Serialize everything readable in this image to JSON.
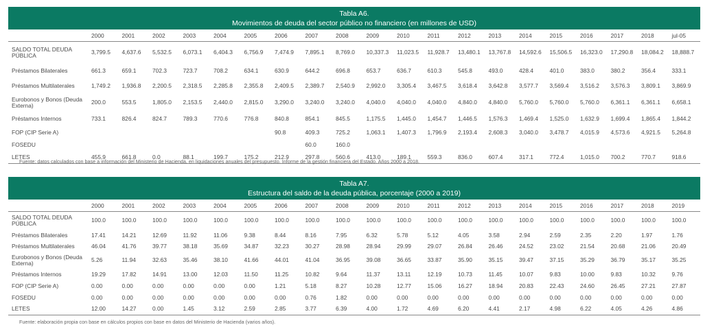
{
  "tables": [
    {
      "title": "Tabla A6.",
      "subtitle": "Movimientos de deuda del sector público no financiero (en millones de USD)",
      "columns": [
        "2000",
        "2001",
        "2002",
        "2003",
        "2004",
        "2005",
        "2006",
        "2007",
        "2008",
        "2009",
        "2010",
        "2011",
        "2012",
        "2013",
        "2014",
        "2015",
        "2016",
        "2017",
        "2018",
        "jul-05"
      ],
      "rows": [
        {
          "label": "SALDO TOTAL DEUDA PÚBLICA",
          "values": [
            "3,799.5",
            "4,637.6",
            "5,532.5",
            "6,073.1",
            "6,404.3",
            "6,756.9",
            "7,474.9",
            "7,895.1",
            "8,769.0",
            "10,337.3",
            "11,023.5",
            "11,928.7",
            "13,480.1",
            "13,767.8",
            "14,592.6",
            "15,506.5",
            "16,323.0",
            "17,290.8",
            "18,084.2",
            "18,888.7"
          ]
        },
        {
          "label": "Préstamos Bilaterales",
          "values": [
            "661.3",
            "659.1",
            "702.3",
            "723.7",
            "708.2",
            "634.1",
            "630.9",
            "644.2",
            "696.8",
            "653.7",
            "636.7",
            "610.3",
            "545.8",
            "493.0",
            "428.4",
            "401.0",
            "383.0",
            "380.2",
            "356.4",
            "333.1"
          ]
        },
        {
          "label": "Préstamos Multilaterales",
          "values": [
            "1,749.2",
            "1,936.8",
            "2,200.5",
            "2,318.5",
            "2,285.8",
            "2,355.8",
            "2,409.5",
            "2,389.7",
            "2,540.9",
            "2,992.0",
            "3,305.4",
            "3,467.5",
            "3,618.4",
            "3,642.8",
            "3,577.7",
            "3,569.4",
            "3,516.2",
            "3,576.3",
            "3,809.1",
            "3,869.9"
          ]
        },
        {
          "label": "Eurobonos y Bonos (Deuda Externa)",
          "values": [
            "200.0",
            "553.5",
            "1,805.0",
            "2,153.5",
            "2,440.0",
            "2,815.0",
            "3,290.0",
            "3,240.0",
            "3,240.0",
            "4,040.0",
            "4,040.0",
            "4,040.0",
            "4,840.0",
            "4,840.0",
            "5,760.0",
            "5,760.0",
            "5,760.0",
            "6,361.1",
            "6,361.1",
            "6,658.1"
          ]
        },
        {
          "label": "Préstamos Internos",
          "values": [
            "733.1",
            "826.4",
            "824.7",
            "789.3",
            "770.6",
            "776.8",
            "840.8",
            "854.1",
            "845.5",
            "1,175.5",
            "1,445.0",
            "1,454.7",
            "1,446.5",
            "1,576.3",
            "1,469.4",
            "1,525.0",
            "1,632.9",
            "1,699.4",
            "1,865.4",
            "1,844.2"
          ]
        },
        {
          "label": "FOP (CIP Serie A)",
          "values": [
            "",
            "",
            "",
            "",
            "",
            "",
            "90.8",
            "409.3",
            "725.2",
            "1,063.1",
            "1,407.3",
            "1,796.9",
            "2,193.4",
            "2,608.3",
            "3,040.0",
            "3,478.7",
            "4,015.9",
            "4,573.6",
            "4,921.5",
            "5,264.8"
          ]
        },
        {
          "label": "FOSEDU",
          "values": [
            "",
            "",
            "",
            "",
            "",
            "",
            "",
            "60.0",
            "160.0",
            "",
            "",
            "",
            "",
            "",
            "",
            "",
            "",
            "",
            "",
            ""
          ]
        },
        {
          "label": "LETES",
          "values": [
            "455.9",
            "661.8",
            "0.0",
            "88.1",
            "199.7",
            "175.2",
            "212.9",
            "297.8",
            "560.6",
            "413.0",
            "189.1",
            "559.3",
            "836.0",
            "607.4",
            "317.1",
            "772.4",
            "1,015.0",
            "700.2",
            "770.7",
            "918.6"
          ]
        }
      ],
      "source": "Fuente: datos calculados con base a información del Ministerio de Hacienda, en liquidaciones anuales del presupuesto. Informe de la gestión financiera del Estado. Años 2000 a 2018."
    },
    {
      "title": "Tabla A7.",
      "subtitle": "Estructura del saldo de la deuda pública, porcentaje (2000 a 2019)",
      "columns": [
        "2000",
        "2001",
        "2002",
        "2003",
        "2004",
        "2005",
        "2006",
        "2007",
        "2008",
        "2009",
        "2010",
        "2011",
        "2012",
        "2013",
        "2014",
        "2015",
        "2016",
        "2017",
        "2018",
        "2019"
      ],
      "rows": [
        {
          "label": "SALDO TOTAL DEUDA PÚBLICA",
          "values": [
            "100.0",
            "100.0",
            "100.0",
            "100.0",
            "100.0",
            "100.0",
            "100.0",
            "100.0",
            "100.0",
            "100.0",
            "100.0",
            "100.0",
            "100.0",
            "100.0",
            "100.0",
            "100.0",
            "100.0",
            "100.0",
            "100.0",
            "100.0"
          ]
        },
        {
          "label": "Préstamos Bilaterales",
          "values": [
            "17.41",
            "14.21",
            "12.69",
            "11.92",
            "11.06",
            "9.38",
            "8.44",
            "8.16",
            "7.95",
            "6.32",
            "5.78",
            "5.12",
            "4.05",
            "3.58",
            "2.94",
            "2.59",
            "2.35",
            "2.20",
            "1.97",
            "1.76"
          ]
        },
        {
          "label": "Préstamos Multilaterales",
          "values": [
            "46.04",
            "41.76",
            "39.77",
            "38.18",
            "35.69",
            "34.87",
            "32.23",
            "30.27",
            "28.98",
            "28.94",
            "29.99",
            "29.07",
            "26.84",
            "26.46",
            "24.52",
            "23.02",
            "21.54",
            "20.68",
            "21.06",
            "20.49"
          ]
        },
        {
          "label": "Eurobonos y Bonos (Deuda Externa)",
          "values": [
            "5.26",
            "11.94",
            "32.63",
            "35.46",
            "38.10",
            "41.66",
            "44.01",
            "41.04",
            "36.95",
            "39.08",
            "36.65",
            "33.87",
            "35.90",
            "35.15",
            "39.47",
            "37.15",
            "35.29",
            "36.79",
            "35.17",
            "35.25"
          ]
        },
        {
          "label": "Préstamos Internos",
          "values": [
            "19.29",
            "17.82",
            "14.91",
            "13.00",
            "12.03",
            "11.50",
            "11.25",
            "10.82",
            "9.64",
            "11.37",
            "13.11",
            "12.19",
            "10.73",
            "11.45",
            "10.07",
            "9.83",
            "10.00",
            "9.83",
            "10.32",
            "9.76"
          ]
        },
        {
          "label": "FOP (CIP Serie A)",
          "values": [
            "0.00",
            "0.00",
            "0.00",
            "0.00",
            "0.00",
            "0.00",
            "1.21",
            "5.18",
            "8.27",
            "10.28",
            "12.77",
            "15.06",
            "16.27",
            "18.94",
            "20.83",
            "22.43",
            "24.60",
            "26.45",
            "27.21",
            "27.87"
          ]
        },
        {
          "label": "FOSEDU",
          "values": [
            "0.00",
            "0.00",
            "0.00",
            "0.00",
            "0.00",
            "0.00",
            "0.00",
            "0.76",
            "1.82",
            "0.00",
            "0.00",
            "0.00",
            "0.00",
            "0.00",
            "0.00",
            "0.00",
            "0.00",
            "0.00",
            "0.00",
            "0.00"
          ]
        },
        {
          "label": "LETES",
          "values": [
            "12.00",
            "14.27",
            "0.00",
            "1.45",
            "3.12",
            "2.59",
            "2.85",
            "3.77",
            "6.39",
            "4.00",
            "1.72",
            "4.69",
            "6.20",
            "4.41",
            "2.17",
            "4.98",
            "6.22",
            "4.05",
            "4.26",
            "4.86"
          ]
        }
      ],
      "source": "Fuente: elaboración propia con base en cálculos propios con base en datos del Ministerio de Hacienda (varios años)."
    }
  ]
}
